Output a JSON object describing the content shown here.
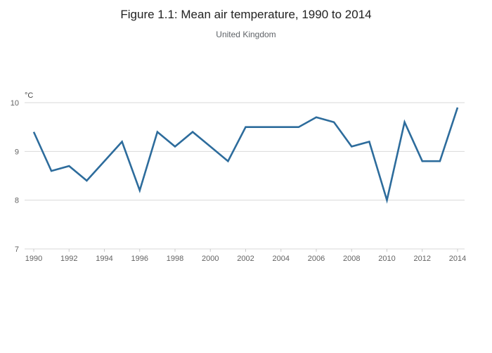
{
  "figure": {
    "title": "Figure 1.1: Mean air temperature, 1990 to 2014",
    "subtitle": "United Kingdom"
  },
  "chart_data": {
    "type": "line",
    "title": "Figure 1.1: Mean air temperature, 1990 to 2014",
    "subtitle": "United Kingdom",
    "xlabel": "",
    "ylabel": "°C",
    "x": [
      1990,
      1991,
      1992,
      1993,
      1994,
      1995,
      1996,
      1997,
      1998,
      1999,
      2000,
      2001,
      2002,
      2003,
      2004,
      2005,
      2006,
      2007,
      2008,
      2009,
      2010,
      2011,
      2012,
      2013,
      2014
    ],
    "series": [
      {
        "name": "Mean air temperature",
        "values": [
          9.4,
          8.6,
          8.7,
          8.4,
          8.8,
          9.2,
          8.2,
          9.4,
          9.1,
          9.4,
          9.1,
          8.8,
          9.5,
          9.5,
          9.5,
          9.5,
          9.7,
          9.6,
          9.1,
          9.2,
          8.0,
          9.6,
          8.8,
          8.8,
          9.9
        ]
      }
    ],
    "ylim": [
      7,
      10
    ],
    "yticks": [
      7,
      8,
      9,
      10
    ],
    "xticks": [
      1990,
      1992,
      1994,
      1996,
      1998,
      2000,
      2002,
      2004,
      2006,
      2008,
      2010,
      2012,
      2014
    ],
    "grid": true,
    "legend_position": "none",
    "line_color": "#2d6c9c"
  }
}
